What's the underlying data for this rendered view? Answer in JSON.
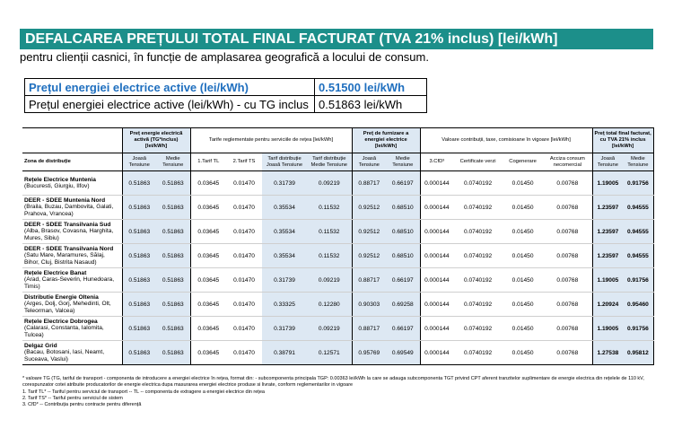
{
  "title": "DEFALCAREA PREȚULUI TOTAL FINAL FACTURAT (TVA 21% inclus) [lei/kWh]",
  "subtitle": "pentru clienții casnici, în funcție de amplasarea geografică a locului de consum.",
  "price_box": {
    "row1_label": "Prețul energiei electrice active (lei/kWh)",
    "row1_value": "0.51500 lei/kWh",
    "row2_label": "Prețul energiei electrice active (lei/kWh) - cu TG inclus",
    "row2_value": "0.51863 lei/kWh"
  },
  "table": {
    "group_headers": {
      "price_energy": "Preț energie electrică activă (TG*inclus) [lei/kWh]",
      "network_tariffs": "Tarife reglementate pentru serviciile de rețea [lei/kWh]",
      "supply_price": "Preț de furnizare a energiei electrice [lei/kWh]",
      "contributions": "Valoare contribuții, taxe, comisioane în vigoare [lei/kWh]",
      "total_price": "Preț total final facturat, cu TVA 21% inclus [lei/kWh]"
    },
    "columns": [
      "Zona de distribuție",
      "Joasă Tensiune",
      "Medie Tensiune",
      "1.Tarif TL",
      "2.Tarif TS",
      "Tarif distribuție Joasă Tensiune",
      "Tarif distribuție Medie Tensiune",
      "Joasă Tensiune",
      "Medie Tensiune",
      "3.CfD³",
      "Certificate verzi",
      "Cogenerare",
      "Acciza consum necomercial",
      "Joasă Tensiune",
      "Medie Tensiune"
    ],
    "rows": [
      {
        "zone": "Rețele Electrice Muntenia",
        "detail": "(Bucuresti, Giurgiu, Ilfov)",
        "values": [
          "0.51863",
          "0.51863",
          "0.03645",
          "0.01470",
          "0.31739",
          "0.09219",
          "0.88717",
          "0.66197",
          "0.000144",
          "0.0740192",
          "0.01450",
          "0.00768",
          "1.19005",
          "0.91756"
        ]
      },
      {
        "zone": "DEER - SDEE Muntenia Nord",
        "detail": "(Braila, Buzau, Dambovita, Galati, Prahova, Vrancea)",
        "values": [
          "0.51863",
          "0.51863",
          "0.03645",
          "0.01470",
          "0.35534",
          "0.11532",
          "0.92512",
          "0.68510",
          "0.000144",
          "0.0740192",
          "0.01450",
          "0.00768",
          "1.23597",
          "0.94555"
        ]
      },
      {
        "zone": "DEER - SDEE Transilvania Sud",
        "detail": "(Alba, Brasov, Covasna, Harghita, Mures, Sibiu)",
        "values": [
          "0.51863",
          "0.51863",
          "0.03645",
          "0.01470",
          "0.35534",
          "0.11532",
          "0.92512",
          "0.68510",
          "0.000144",
          "0.0740192",
          "0.01450",
          "0.00768",
          "1.23597",
          "0.94555"
        ]
      },
      {
        "zone": "DEER - SDEE Transilvania Nord",
        "detail": "(Satu Mare, Maramures, Sălaj, Bihor, Cluj, Bistrita Nasaud)",
        "values": [
          "0.51863",
          "0.51863",
          "0.03645",
          "0.01470",
          "0.35534",
          "0.11532",
          "0.92512",
          "0.68510",
          "0.000144",
          "0.0740192",
          "0.01450",
          "0.00768",
          "1.23597",
          "0.94555"
        ]
      },
      {
        "zone": "Rețele Electrice Banat",
        "detail": "(Arad, Caras-Severin, Hunedoara, Timis)",
        "values": [
          "0.51863",
          "0.51863",
          "0.03645",
          "0.01470",
          "0.31739",
          "0.09219",
          "0.88717",
          "0.66197",
          "0.000144",
          "0.0740192",
          "0.01450",
          "0.00768",
          "1.19005",
          "0.91756"
        ]
      },
      {
        "zone": "Distributie Energie Oltenia",
        "detail": "(Arges, Dolj, Gorj, Mehedinti, Olt, Teleorman, Valcea)",
        "values": [
          "0.51863",
          "0.51863",
          "0.03645",
          "0.01470",
          "0.33325",
          "0.12280",
          "0.90303",
          "0.69258",
          "0.000144",
          "0.0740192",
          "0.01450",
          "0.00768",
          "1.20924",
          "0.95460"
        ]
      },
      {
        "zone": "Rețele Electrice Dobrogea",
        "detail": "(Calarasi, Constanta, Ialomita, Tulcea)",
        "values": [
          "0.51863",
          "0.51863",
          "0.03645",
          "0.01470",
          "0.31739",
          "0.09219",
          "0.88717",
          "0.66197",
          "0.000144",
          "0.0740192",
          "0.01450",
          "0.00768",
          "1.19005",
          "0.91756"
        ]
      },
      {
        "zone": "Delgaz Grid",
        "detail": "(Bacau, Botosani, Iasi, Neamt, Suceava, Vaslui)",
        "values": [
          "0.51863",
          "0.51863",
          "0.03645",
          "0.01470",
          "0.38791",
          "0.12571",
          "0.95769",
          "0.69549",
          "0.000144",
          "0.0740192",
          "0.01450",
          "0.00768",
          "1.27538",
          "0.95812"
        ]
      }
    ]
  },
  "notes": {
    "tg": "* valoare TG (TG, tariful de transport - componenta de introducere a energiei electrice în rețea, format din: - subcomponenta principala TGP: 0.00363 lei/kWh la care se adauga subcomponenta TGT privind CPT aferent tranzitelor suplimentare de energie electrica din rețelele de 110 kV, corespunzator cotei atribuite producatorilor de energie electrica dupa masurarea energiei electrice produse si livrate, conform reglementarilor in vigoare",
    "n1": "1. Tarif TL* -- Tariful pentru serviciul de transport -- TL -- componenta de extragere a energiei electrice din rețea",
    "n2": "2. Tarif TS* -- Tariful pentru serviciul de sistem",
    "n3": "3. CfD* -- Contribuția pentru contracte pentru diferență"
  }
}
